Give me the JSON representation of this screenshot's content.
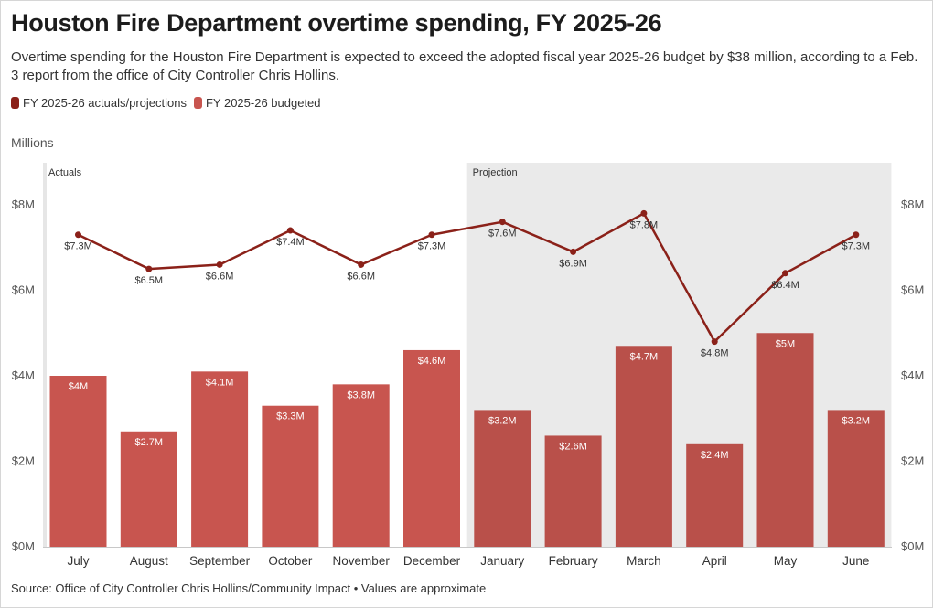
{
  "title": "Houston Fire Department overtime spending, FY 2025-26",
  "subtitle": "Overtime spending for the Houston Fire Department is expected to exceed the adopted fiscal year 2025-26 budget by $38 million, according to a Feb. 3 report from the office of City Controller Chris Hollins.",
  "units_label": "Millions",
  "source": "Source: Office of City Controller Chris Hollins/Community Impact • Values are approximate",
  "colors": {
    "line": "#8b2119",
    "bar": "#c8554f",
    "bar_projection": "#b9504a",
    "projection_bg": "#eaeaea",
    "axis": "#c8c8c8"
  },
  "chart_data": {
    "type": "bar",
    "title": "Houston Fire Department overtime spending, FY 2025-26",
    "xlabel": "",
    "ylabel": "Millions",
    "ylim": [
      0,
      9
    ],
    "yticks": [
      0,
      2,
      4,
      6,
      8
    ],
    "ytick_labels": [
      "$0M",
      "$2M",
      "$4M",
      "$6M",
      "$8M"
    ],
    "categories": [
      "July",
      "August",
      "September",
      "October",
      "November",
      "December",
      "January",
      "February",
      "March",
      "April",
      "May",
      "June"
    ],
    "series": [
      {
        "name": "FY 2025-26 actuals/projections",
        "type": "line",
        "values": [
          7.3,
          6.5,
          6.6,
          7.4,
          6.6,
          7.3,
          7.6,
          6.9,
          7.8,
          4.8,
          6.4,
          7.3
        ],
        "labels": [
          "$7.3M",
          "$6.5M",
          "$6.6M",
          "$7.4M",
          "$6.6M",
          "$7.3M",
          "$7.6M",
          "$6.9M",
          "$7.8M",
          "$4.8M",
          "$6.4M",
          "$7.3M"
        ]
      },
      {
        "name": "FY 2025-26 budgeted",
        "type": "bar",
        "values": [
          4,
          2.7,
          4.1,
          3.3,
          3.8,
          4.6,
          3.2,
          2.6,
          4.7,
          2.4,
          5,
          3.2
        ],
        "labels": [
          "$4M",
          "$2.7M",
          "$4.1M",
          "$3.3M",
          "$3.8M",
          "$4.6M",
          "$3.2M",
          "$2.6M",
          "$4.7M",
          "$2.4M",
          "$5M",
          "$3.2M"
        ]
      }
    ],
    "regions": [
      {
        "label": "Actuals",
        "start_index": 0,
        "end_index": 5,
        "shaded": false
      },
      {
        "label": "Projection",
        "start_index": 6,
        "end_index": 11,
        "shaded": true
      }
    ],
    "legend_position": "top-left",
    "grid": false
  }
}
